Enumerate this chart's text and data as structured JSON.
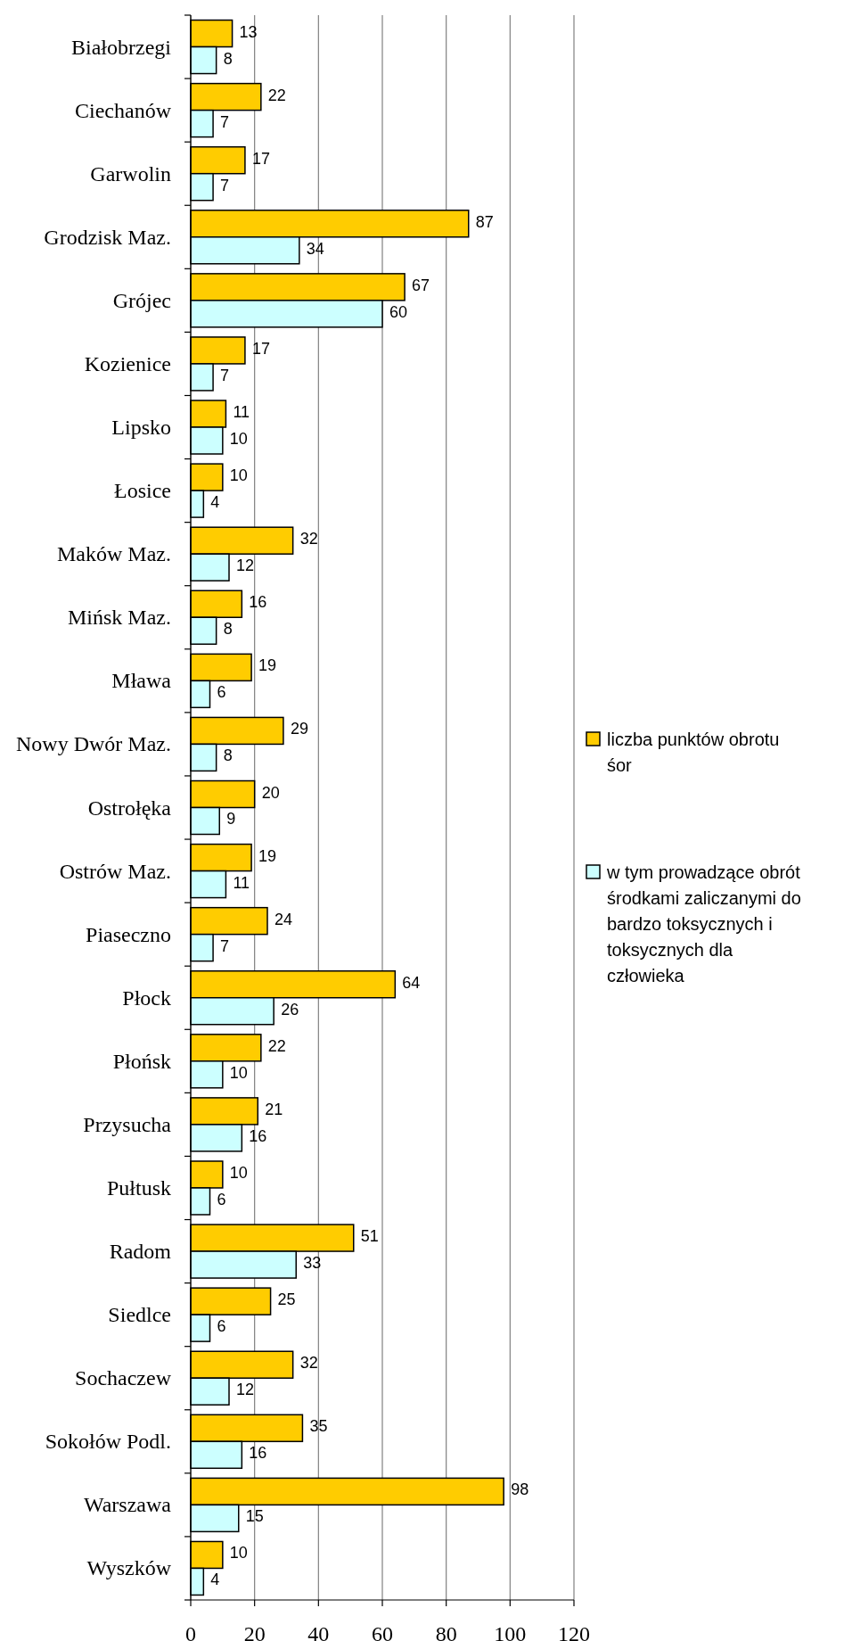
{
  "chart_data": {
    "type": "bar",
    "orientation": "horizontal",
    "categories": [
      "Białobrzegi",
      "Ciechanów",
      "Garwolin",
      "Grodzisk Maz.",
      "Grójec",
      "Kozienice",
      "Lipsko",
      "Łosice",
      "Maków Maz.",
      "Mińsk Maz.",
      "Mława",
      "Nowy Dwór Maz.",
      "Ostrołęka",
      "Ostrów Maz.",
      "Piaseczno",
      "Płock",
      "Płońsk",
      "Przysucha",
      "Pułtusk",
      "Radom",
      "Siedlce",
      "Sochaczew",
      "Sokołów Podl.",
      "Warszawa",
      "Wyszków"
    ],
    "series": [
      {
        "name": "liczba punktów obrotu śor",
        "color": "#ffcc00",
        "values": [
          13,
          22,
          17,
          87,
          67,
          17,
          11,
          10,
          32,
          16,
          19,
          29,
          20,
          19,
          24,
          64,
          22,
          21,
          10,
          51,
          25,
          32,
          35,
          98,
          10
        ]
      },
      {
        "name": "w tym prowadzące obrót środkami zaliczanymi do bardzo toksycznych i toksycznych dla człowieka",
        "color": "#ccffff",
        "values": [
          8,
          7,
          7,
          34,
          60,
          7,
          10,
          4,
          12,
          8,
          6,
          8,
          9,
          11,
          7,
          26,
          10,
          16,
          6,
          33,
          6,
          12,
          16,
          15,
          4
        ]
      }
    ],
    "xlim": [
      0,
      120
    ],
    "xticks": [
      0,
      20,
      40,
      60,
      80,
      100,
      120
    ],
    "grid": "x",
    "legend": "right",
    "data_labels": true
  }
}
